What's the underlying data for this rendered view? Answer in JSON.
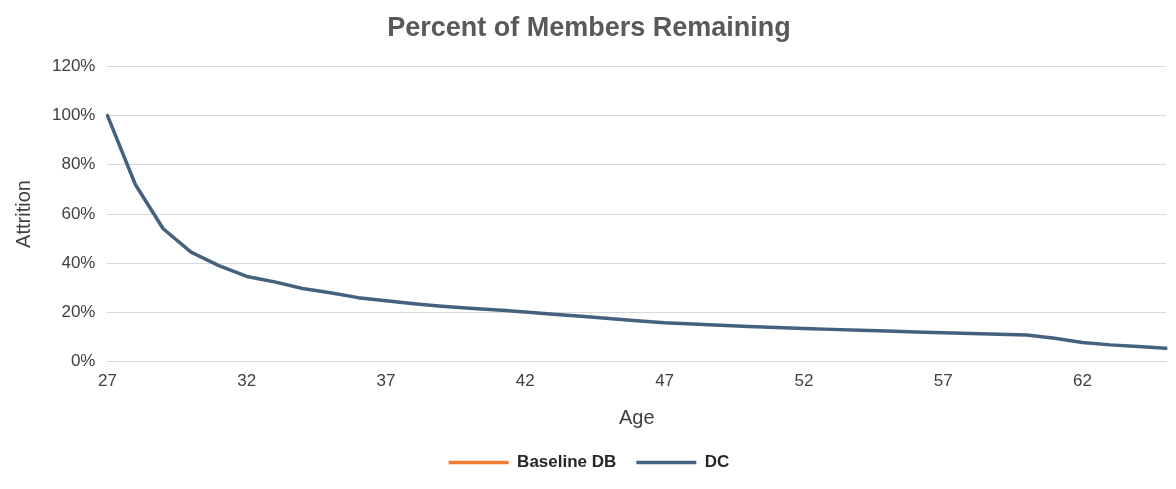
{
  "chart_data": {
    "type": "line",
    "title": "Percent of Members Remaining",
    "xlabel": "Age",
    "ylabel": "Attrition",
    "categories": [
      "27",
      null,
      null,
      null,
      null,
      "32",
      null,
      null,
      null,
      null,
      "37",
      null,
      null,
      null,
      null,
      "42",
      null,
      null,
      null,
      null,
      "47",
      null,
      null,
      null,
      null,
      "52",
      null,
      null,
      null,
      null,
      "57",
      null,
      null,
      null,
      null,
      "62",
      null,
      null,
      null
    ],
    "series": [
      {
        "name": "Baseline DB",
        "color": "#ed7d31",
        "values": [
          null,
          null,
          null,
          null,
          null,
          null,
          null,
          null,
          null,
          null,
          null,
          null,
          null,
          null,
          null,
          null,
          null,
          null,
          null,
          null,
          null,
          null,
          null,
          null,
          null,
          null,
          null,
          null,
          null,
          null,
          null,
          null,
          null,
          null,
          null,
          null,
          null,
          null,
          null
        ]
      },
      {
        "name": "DC",
        "color": "#44627f",
        "values": [
          100,
          72,
          54,
          44.5,
          39,
          34.6,
          32.4,
          29.7,
          28,
          26,
          24.7,
          23.5,
          22.5,
          21.7,
          21,
          20.2,
          19.2,
          18.4,
          17.5,
          16.6,
          15.8,
          15.3,
          14.8,
          14.3,
          13.9,
          13.5,
          13.1,
          12.7,
          12.4,
          12,
          11.7,
          11.4,
          11.1,
          10.8,
          9.5,
          7.8,
          6.8,
          6.1,
          5.4
        ]
      }
    ],
    "ylim": [
      0,
      120
    ],
    "yticks": [
      {
        "value": 0,
        "label": "0%"
      },
      {
        "value": 20,
        "label": "20%"
      },
      {
        "value": 40,
        "label": "40%"
      },
      {
        "value": 60,
        "label": "60%"
      },
      {
        "value": 80,
        "label": "80%"
      },
      {
        "value": 100,
        "label": "100%"
      },
      {
        "value": 120,
        "label": "120%"
      }
    ],
    "grid": "y",
    "legend": "bottom",
    "marker": "none",
    "line_style": "solid"
  }
}
